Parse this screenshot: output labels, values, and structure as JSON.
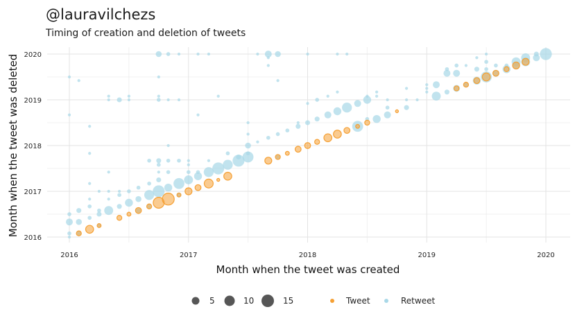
{
  "chart_data": {
    "type": "scatter",
    "title": "@lauravilchezs",
    "subtitle": "Timing of creation and deletion of tweets",
    "xlabel": "Month when the tweet was created",
    "ylabel": "Month when the tweet was deleted",
    "xlim": [
      2016,
      2020
    ],
    "ylim": [
      2016,
      2020
    ],
    "x_ticks": [
      "2016",
      "2017",
      "2018",
      "2019",
      "2020"
    ],
    "y_ticks": [
      "2016",
      "2017",
      "2018",
      "2019",
      "2020"
    ],
    "grid": true,
    "legend_position": "bottom",
    "size_legend": {
      "values": [
        5,
        10,
        15
      ],
      "labels": [
        "5",
        "10",
        "15"
      ]
    },
    "colors": {
      "Tweet": "#f5a034",
      "Retweet": "#a9d8e8"
    },
    "series": [
      {
        "name": "Retweet",
        "points": [
          [
            2016.0,
            2016.0,
            1
          ],
          [
            2016.0,
            2016.08,
            2
          ],
          [
            2016.0,
            2016.33,
            5
          ],
          [
            2016.0,
            2016.5,
            2
          ],
          [
            2016.0,
            2018.67,
            1
          ],
          [
            2016.0,
            2019.5,
            1
          ],
          [
            2016.08,
            2016.08,
            3
          ],
          [
            2016.08,
            2016.33,
            4
          ],
          [
            2016.08,
            2016.58,
            3
          ],
          [
            2016.08,
            2019.42,
            1
          ],
          [
            2016.17,
            2016.42,
            2
          ],
          [
            2016.17,
            2016.67,
            2
          ],
          [
            2016.17,
            2016.83,
            1
          ],
          [
            2016.17,
            2017.17,
            1
          ],
          [
            2016.17,
            2017.83,
            1
          ],
          [
            2016.17,
            2018.42,
            1
          ],
          [
            2016.25,
            2016.25,
            2
          ],
          [
            2016.25,
            2016.5,
            3
          ],
          [
            2016.25,
            2016.58,
            2
          ],
          [
            2016.25,
            2017.0,
            1
          ],
          [
            2016.33,
            2016.58,
            7
          ],
          [
            2016.33,
            2016.83,
            1
          ],
          [
            2016.33,
            2017.0,
            1
          ],
          [
            2016.33,
            2017.42,
            1
          ],
          [
            2016.33,
            2019.0,
            1
          ],
          [
            2016.33,
            2019.08,
            1
          ],
          [
            2016.42,
            2016.67,
            3
          ],
          [
            2016.42,
            2016.92,
            2
          ],
          [
            2016.42,
            2017.0,
            1
          ],
          [
            2016.42,
            2019.0,
            3
          ],
          [
            2016.5,
            2016.75,
            6
          ],
          [
            2016.5,
            2017.0,
            2
          ],
          [
            2016.5,
            2019.0,
            1
          ],
          [
            2016.5,
            2019.08,
            1
          ],
          [
            2016.58,
            2016.58,
            3
          ],
          [
            2016.58,
            2016.83,
            4
          ],
          [
            2016.58,
            2017.08,
            2
          ],
          [
            2016.67,
            2016.67,
            3
          ],
          [
            2016.67,
            2016.92,
            8
          ],
          [
            2016.67,
            2017.17,
            2
          ],
          [
            2016.67,
            2017.67,
            2
          ],
          [
            2016.75,
            2017.0,
            10
          ],
          [
            2016.75,
            2017.25,
            3
          ],
          [
            2016.75,
            2017.42,
            1
          ],
          [
            2016.75,
            2017.58,
            2
          ],
          [
            2016.75,
            2017.67,
            3
          ],
          [
            2016.75,
            2019.0,
            2
          ],
          [
            2016.75,
            2019.08,
            1
          ],
          [
            2016.75,
            2019.5,
            1
          ],
          [
            2016.75,
            2020.0,
            4
          ],
          [
            2016.83,
            2017.08,
            6
          ],
          [
            2016.83,
            2017.42,
            2
          ],
          [
            2016.83,
            2017.67,
            2
          ],
          [
            2016.83,
            2018.0,
            1
          ],
          [
            2016.83,
            2019.0,
            1
          ],
          [
            2016.83,
            2020.0,
            2
          ],
          [
            2016.92,
            2016.92,
            3
          ],
          [
            2016.92,
            2017.17,
            9
          ],
          [
            2016.92,
            2017.67,
            2
          ],
          [
            2016.92,
            2019.0,
            1
          ],
          [
            2016.92,
            2020.0,
            1
          ],
          [
            2017.0,
            2017.25,
            7
          ],
          [
            2017.0,
            2017.42,
            2
          ],
          [
            2017.0,
            2017.58,
            1
          ],
          [
            2017.0,
            2017.67,
            1
          ],
          [
            2017.08,
            2017.33,
            6
          ],
          [
            2017.08,
            2017.42,
            2
          ],
          [
            2017.08,
            2018.67,
            1
          ],
          [
            2017.08,
            2020.0,
            1
          ],
          [
            2017.17,
            2017.42,
            8
          ],
          [
            2017.17,
            2017.67,
            1
          ],
          [
            2017.17,
            2020.0,
            1
          ],
          [
            2017.25,
            2017.5,
            10
          ],
          [
            2017.25,
            2019.08,
            1
          ],
          [
            2017.33,
            2017.58,
            8
          ],
          [
            2017.33,
            2017.83,
            2
          ],
          [
            2017.42,
            2017.67,
            10
          ],
          [
            2017.42,
            2017.75,
            3
          ],
          [
            2017.5,
            2017.75,
            9
          ],
          [
            2017.5,
            2017.83,
            2
          ],
          [
            2017.5,
            2018.0,
            4
          ],
          [
            2017.5,
            2018.25,
            1
          ],
          [
            2017.5,
            2018.5,
            1
          ],
          [
            2017.58,
            2018.08,
            1
          ],
          [
            2017.58,
            2020.0,
            1
          ],
          [
            2017.67,
            2018.17,
            2
          ],
          [
            2017.67,
            2019.75,
            1
          ],
          [
            2017.67,
            2019.92,
            1
          ],
          [
            2017.67,
            2020.0,
            5
          ],
          [
            2017.75,
            2017.75,
            2
          ],
          [
            2017.75,
            2018.25,
            2
          ],
          [
            2017.75,
            2019.42,
            1
          ],
          [
            2017.75,
            2020.0,
            4
          ],
          [
            2017.83,
            2018.33,
            2
          ],
          [
            2017.92,
            2018.42,
            3
          ],
          [
            2017.92,
            2018.5,
            1
          ],
          [
            2018.0,
            2018.5,
            3
          ],
          [
            2018.0,
            2018.92,
            1
          ],
          [
            2018.0,
            2020.0,
            1
          ],
          [
            2018.08,
            2018.58,
            3
          ],
          [
            2018.08,
            2019.0,
            2
          ],
          [
            2018.17,
            2018.67,
            5
          ],
          [
            2018.17,
            2019.08,
            1
          ],
          [
            2018.25,
            2018.75,
            6
          ],
          [
            2018.25,
            2019.17,
            1
          ],
          [
            2018.25,
            2020.0,
            1
          ],
          [
            2018.33,
            2018.83,
            8
          ],
          [
            2018.33,
            2020.0,
            1
          ],
          [
            2018.42,
            2018.42,
            9
          ],
          [
            2018.42,
            2018.92,
            5
          ],
          [
            2018.5,
            2018.58,
            2
          ],
          [
            2018.5,
            2019.0,
            6
          ],
          [
            2018.5,
            2019.08,
            1
          ],
          [
            2018.58,
            2018.58,
            6
          ],
          [
            2018.58,
            2019.08,
            1
          ],
          [
            2018.58,
            2019.17,
            1
          ],
          [
            2018.67,
            2018.67,
            5
          ],
          [
            2018.67,
            2018.83,
            2
          ],
          [
            2018.67,
            2019.0,
            1
          ],
          [
            2018.83,
            2018.83,
            3
          ],
          [
            2018.83,
            2019.0,
            1
          ],
          [
            2018.83,
            2019.25,
            1
          ],
          [
            2018.92,
            2019.0,
            1
          ],
          [
            2019.0,
            2019.17,
            1
          ],
          [
            2019.0,
            2019.25,
            1
          ],
          [
            2019.0,
            2019.33,
            1
          ],
          [
            2019.08,
            2019.08,
            7
          ],
          [
            2019.08,
            2019.33,
            5
          ],
          [
            2019.17,
            2019.17,
            3
          ],
          [
            2019.17,
            2019.58,
            5
          ],
          [
            2019.17,
            2019.67,
            2
          ],
          [
            2019.25,
            2019.25,
            5
          ],
          [
            2019.25,
            2019.58,
            5
          ],
          [
            2019.25,
            2019.75,
            2
          ],
          [
            2019.33,
            2019.33,
            3
          ],
          [
            2019.33,
            2019.75,
            1
          ],
          [
            2019.42,
            2019.42,
            6
          ],
          [
            2019.42,
            2019.67,
            3
          ],
          [
            2019.42,
            2019.92,
            1
          ],
          [
            2019.5,
            2019.5,
            9
          ],
          [
            2019.5,
            2019.67,
            2
          ],
          [
            2019.5,
            2019.83,
            2
          ],
          [
            2019.5,
            2020.0,
            1
          ],
          [
            2019.58,
            2019.58,
            5
          ],
          [
            2019.58,
            2019.75,
            2
          ],
          [
            2019.67,
            2019.67,
            6
          ],
          [
            2019.67,
            2019.75,
            2
          ],
          [
            2019.75,
            2019.75,
            6
          ],
          [
            2019.75,
            2019.83,
            7
          ],
          [
            2019.83,
            2019.83,
            7
          ],
          [
            2019.83,
            2019.92,
            7
          ],
          [
            2019.92,
            2019.92,
            5
          ],
          [
            2019.92,
            2020.0,
            3
          ],
          [
            2020.0,
            2020.0,
            10
          ]
        ]
      },
      {
        "name": "Tweet",
        "points": [
          [
            2016.08,
            2016.08,
            3
          ],
          [
            2016.17,
            2016.17,
            6
          ],
          [
            2016.25,
            2016.25,
            2
          ],
          [
            2016.42,
            2016.42,
            3
          ],
          [
            2016.5,
            2016.5,
            2
          ],
          [
            2016.58,
            2016.58,
            4
          ],
          [
            2016.67,
            2016.67,
            3
          ],
          [
            2016.75,
            2016.75,
            9
          ],
          [
            2016.83,
            2016.83,
            10
          ],
          [
            2016.92,
            2016.92,
            2
          ],
          [
            2017.0,
            2017.0,
            5
          ],
          [
            2017.08,
            2017.08,
            4
          ],
          [
            2017.17,
            2017.17,
            7
          ],
          [
            2017.25,
            2017.25,
            1
          ],
          [
            2017.33,
            2017.33,
            6
          ],
          [
            2017.67,
            2017.67,
            5
          ],
          [
            2017.75,
            2017.75,
            3
          ],
          [
            2017.83,
            2017.83,
            2
          ],
          [
            2017.92,
            2017.92,
            4
          ],
          [
            2018.0,
            2018.0,
            4
          ],
          [
            2018.08,
            2018.08,
            3
          ],
          [
            2018.17,
            2018.17,
            6
          ],
          [
            2018.25,
            2018.25,
            6
          ],
          [
            2018.33,
            2018.33,
            4
          ],
          [
            2018.42,
            2018.42,
            2
          ],
          [
            2018.5,
            2018.5,
            3
          ],
          [
            2018.75,
            2018.75,
            1
          ],
          [
            2019.25,
            2019.25,
            3
          ],
          [
            2019.33,
            2019.33,
            3
          ],
          [
            2019.42,
            2019.42,
            4
          ],
          [
            2019.5,
            2019.5,
            6
          ],
          [
            2019.58,
            2019.58,
            4
          ],
          [
            2019.67,
            2019.67,
            3
          ],
          [
            2019.75,
            2019.75,
            5
          ],
          [
            2019.83,
            2019.83,
            5
          ]
        ]
      }
    ]
  }
}
